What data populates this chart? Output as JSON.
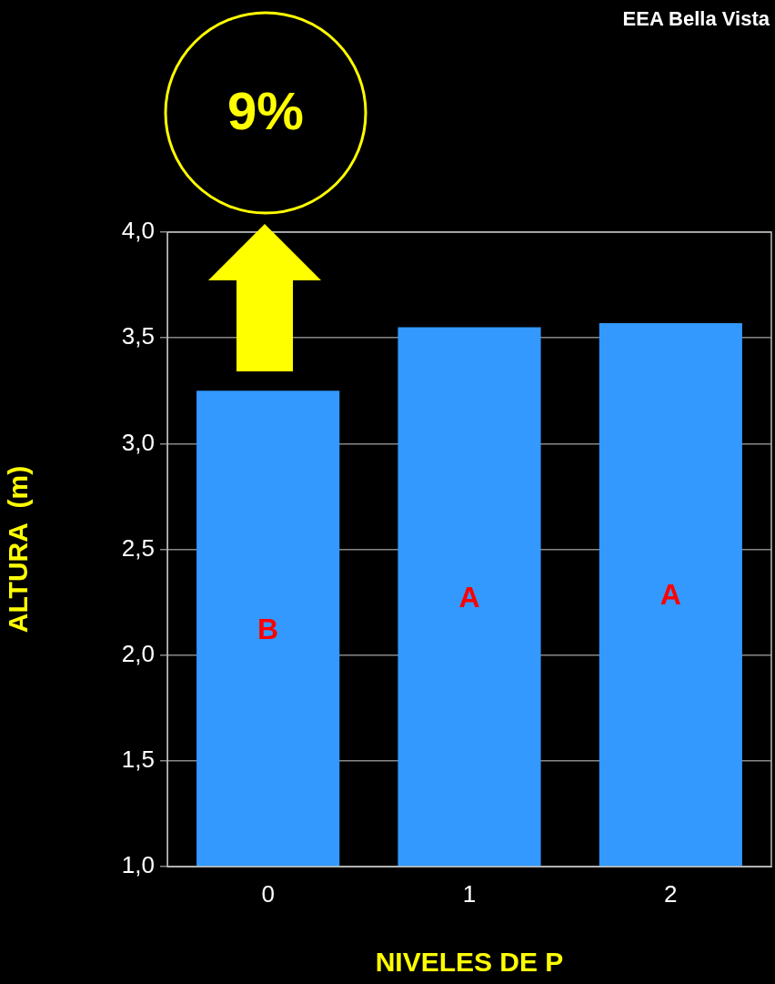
{
  "chart_data": {
    "type": "bar",
    "xlabel": "NIVELES DE P",
    "ylabel": "ALTURA  (m)",
    "categories": [
      "0",
      "1",
      "2"
    ],
    "values": [
      3.25,
      3.55,
      3.57
    ],
    "color": "#3399ff",
    "ylim": [
      1.0,
      4.0
    ],
    "yticks": [
      {
        "value": 1.0,
        "label": "1,0"
      },
      {
        "value": 1.5,
        "label": "1,5"
      },
      {
        "value": 2.0,
        "label": "2,0"
      },
      {
        "value": 2.5,
        "label": "2,5"
      },
      {
        "value": 3.0,
        "label": "3,0"
      },
      {
        "value": 3.5,
        "label": "3,5"
      },
      {
        "value": 4.0,
        "label": "4,0"
      }
    ],
    "grid": "y",
    "legend": false,
    "annotations": [
      "EEA Bella Vista",
      "9%",
      "B",
      "A",
      "A"
    ]
  }
}
